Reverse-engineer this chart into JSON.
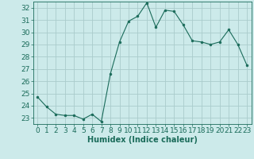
{
  "x": [
    0,
    1,
    2,
    3,
    4,
    5,
    6,
    7,
    8,
    9,
    10,
    11,
    12,
    13,
    14,
    15,
    16,
    17,
    18,
    19,
    20,
    21,
    22,
    23
  ],
  "y": [
    24.7,
    23.9,
    23.3,
    23.2,
    23.2,
    22.9,
    23.3,
    22.7,
    26.6,
    29.2,
    30.9,
    31.3,
    32.4,
    30.4,
    31.8,
    31.7,
    30.6,
    29.3,
    29.2,
    29.0,
    29.2,
    30.2,
    29.0,
    27.3
  ],
  "line_color": "#1a6b5a",
  "marker": "o",
  "marker_size": 2.0,
  "bg_color": "#cceaea",
  "grid_color": "#aacccc",
  "xlabel": "Humidex (Indice chaleur)",
  "ylim": [
    22.5,
    32.5
  ],
  "xlim": [
    -0.5,
    23.5
  ],
  "yticks": [
    23,
    24,
    25,
    26,
    27,
    28,
    29,
    30,
    31,
    32
  ],
  "xticks": [
    0,
    1,
    2,
    3,
    4,
    5,
    6,
    7,
    8,
    9,
    10,
    11,
    12,
    13,
    14,
    15,
    16,
    17,
    18,
    19,
    20,
    21,
    22,
    23
  ],
  "tick_color": "#1a6b5a",
  "label_color": "#1a6b5a",
  "axis_color": "#1a6b5a",
  "xlabel_fontsize": 7,
  "tick_fontsize": 6.5
}
